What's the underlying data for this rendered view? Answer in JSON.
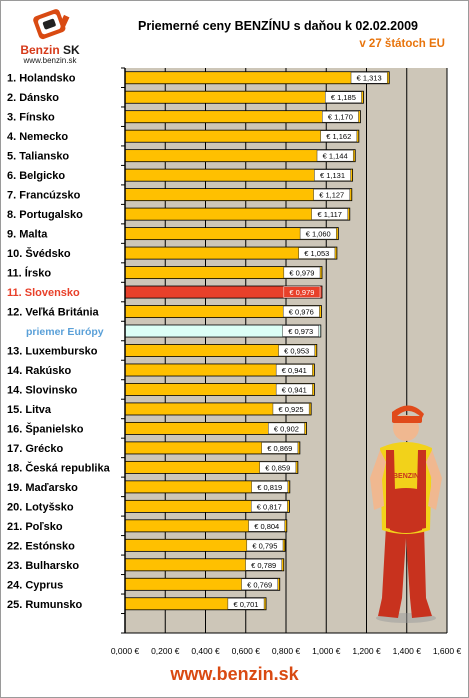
{
  "logo": {
    "brand": "Benzin",
    "brand_suffix": "SK",
    "url": "www.benzin.sk"
  },
  "title": "Priemerné ceny BENZÍNU s daňou k 02.02.2009",
  "subtitle": "v 27 štátoch EU",
  "footer": "www.benzin.sk",
  "mascot": {
    "shirt_text": "BENZIN"
  },
  "colors": {
    "bar": "#ffc000",
    "bar_highlight": "#e8402a",
    "bar_average": "#dcfff6",
    "plot_bg": "#cdc6b8",
    "label_default": "#000000",
    "label_highlight": "#e8402a",
    "label_average": "#5aa0d8"
  },
  "chart_data": {
    "type": "bar",
    "orientation": "horizontal",
    "categories": [
      "1. Holandsko",
      "2. Dánsko",
      "3. Fínsko",
      "4. Nemecko",
      "5. Taliansko",
      "6. Belgicko",
      "7. Francúzsko",
      "8. Portugalsko",
      "9. Malta",
      "10. Švédsko",
      "11. Írsko",
      "11. Slovensko",
      "12. Veľká Británia",
      "priemer Európy",
      "13. Luxembursko",
      "14. Rakúsko",
      "14. Slovinsko",
      "15. Litva",
      "16. Španielsko",
      "17. Grécko",
      "18. Česká republika",
      "19. Maďarsko",
      "20. Lotyšsko",
      "21. Poľsko",
      "22. Estónsko",
      "23. Bulharsko",
      "24. Cyprus",
      "25. Rumunsko"
    ],
    "values": [
      1.313,
      1.185,
      1.17,
      1.162,
      1.144,
      1.131,
      1.127,
      1.117,
      1.06,
      1.053,
      0.979,
      0.979,
      0.976,
      0.973,
      0.953,
      0.941,
      0.941,
      0.925,
      0.902,
      0.869,
      0.859,
      0.819,
      0.817,
      0.804,
      0.795,
      0.789,
      0.769,
      0.701
    ],
    "value_labels": [
      "€ 1,313",
      "€ 1,185",
      "€ 1,170",
      "€ 1,162",
      "€ 1,144",
      "€ 1,131",
      "€ 1,127",
      "€ 1,117",
      "€ 1,060",
      "€ 1,053",
      "€ 0,979",
      "€ 0,979",
      "€ 0,976",
      "€ 0,973",
      "€ 0,953",
      "€ 0,941",
      "€ 0,941",
      "€ 0,925",
      "€ 0,902",
      "€ 0,869",
      "€ 0,859",
      "€ 0,819",
      "€ 0,817",
      "€ 0,804",
      "€ 0,795",
      "€ 0,789",
      "€ 0,769",
      "€ 0,701"
    ],
    "highlight_index": 11,
    "average_index": 13,
    "xlim": [
      0,
      1.6
    ],
    "xticks": [
      0,
      0.2,
      0.4,
      0.6,
      0.8,
      1.0,
      1.2,
      1.4,
      1.6
    ],
    "xtick_labels": [
      "0,000 €",
      "0,200 €",
      "0,400 €",
      "0,600 €",
      "0,800 €",
      "1,000 €",
      "1,200 €",
      "1,400 €",
      "1,600 €"
    ],
    "grid": "vertical",
    "empty_rows_after": 1
  }
}
